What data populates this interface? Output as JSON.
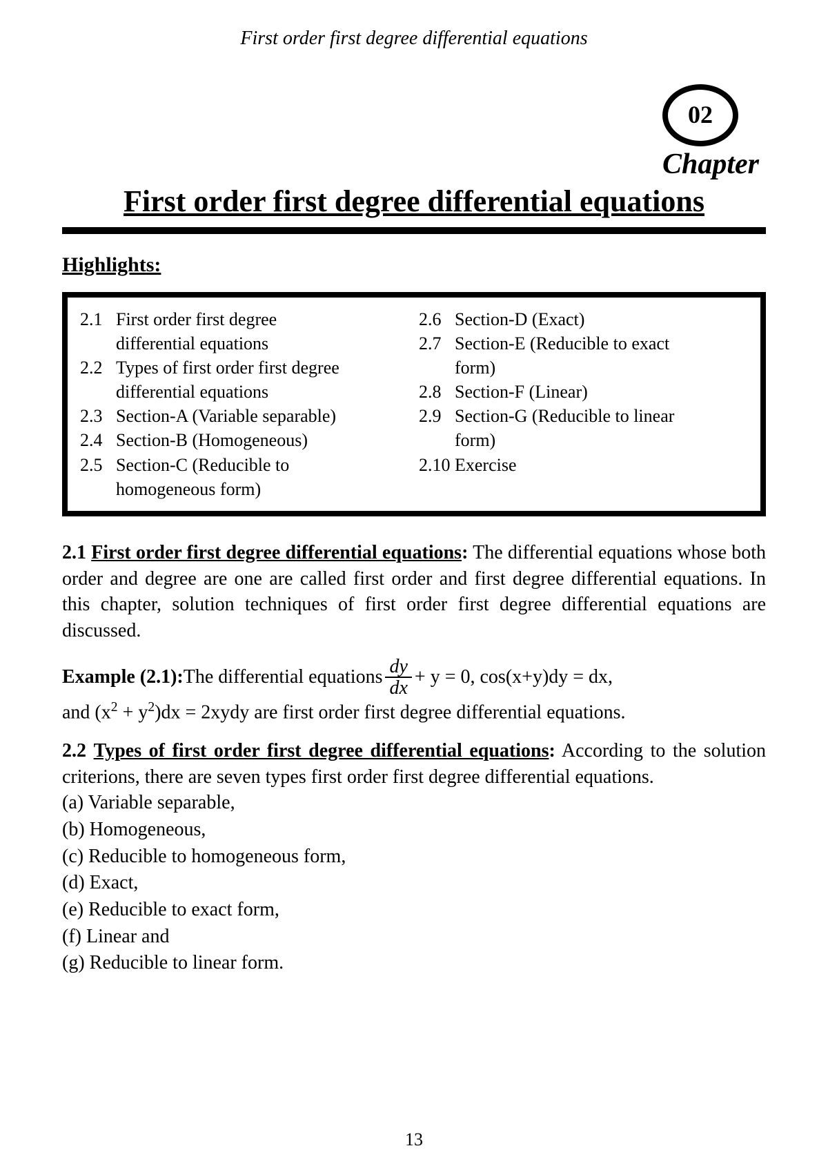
{
  "header": "First order first degree differential equations",
  "chapter": {
    "number": "02",
    "label": "Chapter",
    "title": "First order first degree differential equations"
  },
  "highlights": {
    "label": "Highlights:",
    "left": [
      {
        "num": "2.1",
        "text": "First order first degree",
        "cont": "differential equations"
      },
      {
        "num": "2.2",
        "text": "Types of first order first degree",
        "cont": "differential equations"
      },
      {
        "num": "2.3",
        "text": "Section-A (Variable separable)"
      },
      {
        "num": "2.4",
        "text": "Section-B (Homogeneous)"
      },
      {
        "num": "2.5",
        "text": "Section-C (Reducible to",
        "cont": "homogeneous form)"
      }
    ],
    "right": [
      {
        "num": "2.6",
        "text": "Section-D (Exact)"
      },
      {
        "num": "2.7",
        "text": "Section-E (Reducible to exact",
        "cont": "form)"
      },
      {
        "num": "2.8",
        "text": "Section-F (Linear)"
      },
      {
        "num": "2.9",
        "text": "Section-G (Reducible to linear",
        "cont": "form)"
      },
      {
        "num": "2.10",
        "text": "Exercise"
      }
    ]
  },
  "section21": {
    "num": "2.1",
    "name": "First order first degree differential equations",
    "colon": ":",
    "body": " The differential equations whose both order and degree are one are called first order and first degree differential equations. In this chapter, solution techniques of first order first degree differential equations are discussed."
  },
  "example21": {
    "label": "Example (2.1):",
    "lead": " The differential equations ",
    "frac_num": "dy",
    "frac_den": "dx",
    "after_frac": " + y = 0, cos(x+y)dy = dx,",
    "line2_pre": "and (x",
    "sup1": "2",
    "line2_mid": " + y",
    "sup2": "2",
    "line2_post": ")dx = 2xydy are first order first degree differential equations."
  },
  "section22": {
    "num": "2.2",
    "name": "Types of first order first degree differential equations",
    "colon": ":",
    "body": " According to the solution criterions, there are seven types first order first degree differential equations.",
    "types": [
      "(a) Variable separable,",
      "(b) Homogeneous,",
      "(c) Reducible to homogeneous form,",
      "(d) Exact,",
      "(e) Reducible to exact form,",
      "(f) Linear and",
      "(g) Reducible to linear form."
    ]
  },
  "page_number": "13",
  "colors": {
    "text": "#000000",
    "background": "#ffffff"
  }
}
